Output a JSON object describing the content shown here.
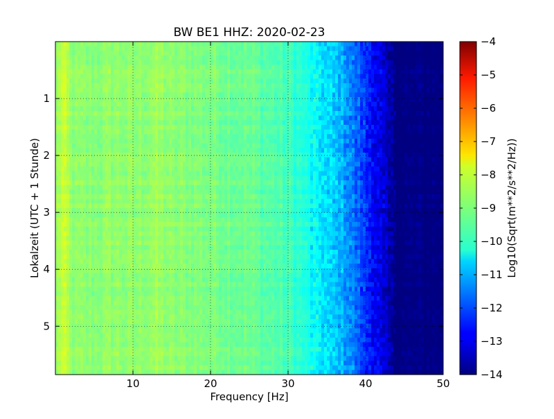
{
  "chart_data": {
    "type": "heatmap",
    "title": "BW BE1 HHZ: 2020-02-23",
    "xlabel": "Frequency [Hz]",
    "ylabel": "Lokalzeit (UTC + 1 Stunde)",
    "xlim": [
      0,
      50
    ],
    "ylim": [
      5.85,
      0
    ],
    "x_ticks": [
      10,
      20,
      30,
      40,
      50
    ],
    "y_ticks": [
      1,
      2,
      3,
      4,
      5
    ],
    "grid": true,
    "colormap": "jet",
    "colorbar": {
      "label": "Log10(Sqrt(m**2/s**2/Hz))",
      "range": [
        -14,
        -4
      ],
      "ticks": [
        -4,
        -5,
        -6,
        -7,
        -8,
        -9,
        -10,
        -11,
        -12,
        -13,
        -14
      ]
    },
    "mean_spectrum": {
      "frequency_hz": [
        0,
        0.5,
        1,
        1.5,
        2,
        3,
        5,
        8,
        10,
        13,
        15,
        20,
        25,
        28,
        30,
        32,
        33,
        35,
        37,
        38,
        39,
        40,
        41,
        42,
        43,
        44,
        50
      ],
      "log10_amplitude": [
        -8.9,
        -8.5,
        -8.3,
        -8.5,
        -8.8,
        -8.9,
        -8.9,
        -8.8,
        -8.9,
        -8.7,
        -8.9,
        -9.0,
        -9.2,
        -9.4,
        -9.6,
        -9.9,
        -10.2,
        -10.6,
        -11.0,
        -11.4,
        -11.8,
        -12.3,
        -12.7,
        -13.1,
        -13.6,
        -14.0,
        -14.0
      ]
    }
  }
}
